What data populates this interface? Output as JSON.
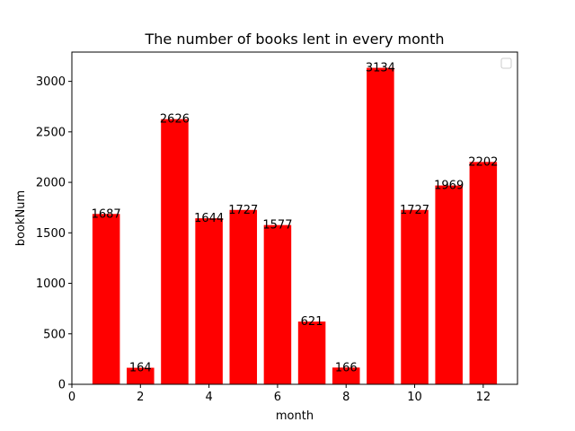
{
  "chart_data": {
    "type": "bar",
    "title": "The number of books lent in every month",
    "xlabel": "month",
    "ylabel": "bookNum",
    "x": [
      1,
      2,
      3,
      4,
      5,
      6,
      7,
      8,
      9,
      10,
      11,
      12
    ],
    "values": [
      1687,
      164,
      2626,
      1644,
      1727,
      1577,
      621,
      166,
      3134,
      1727,
      1969,
      2202
    ],
    "data_labels": [
      "1687",
      "164",
      "2626",
      "1644",
      "1727",
      "1577",
      "621",
      "166",
      "3134",
      "1727",
      "1969",
      "2202"
    ],
    "xlim": [
      0,
      13
    ],
    "ylim": [
      0,
      3290
    ],
    "xticks": [
      0,
      2,
      4,
      6,
      8,
      10,
      12
    ],
    "yticks": [
      0,
      500,
      1000,
      1500,
      2000,
      2500,
      3000
    ],
    "bar_width": 0.8,
    "bar_color": "#ff0000",
    "grid": false,
    "legend": {
      "placement": "top-right",
      "entries": []
    }
  }
}
